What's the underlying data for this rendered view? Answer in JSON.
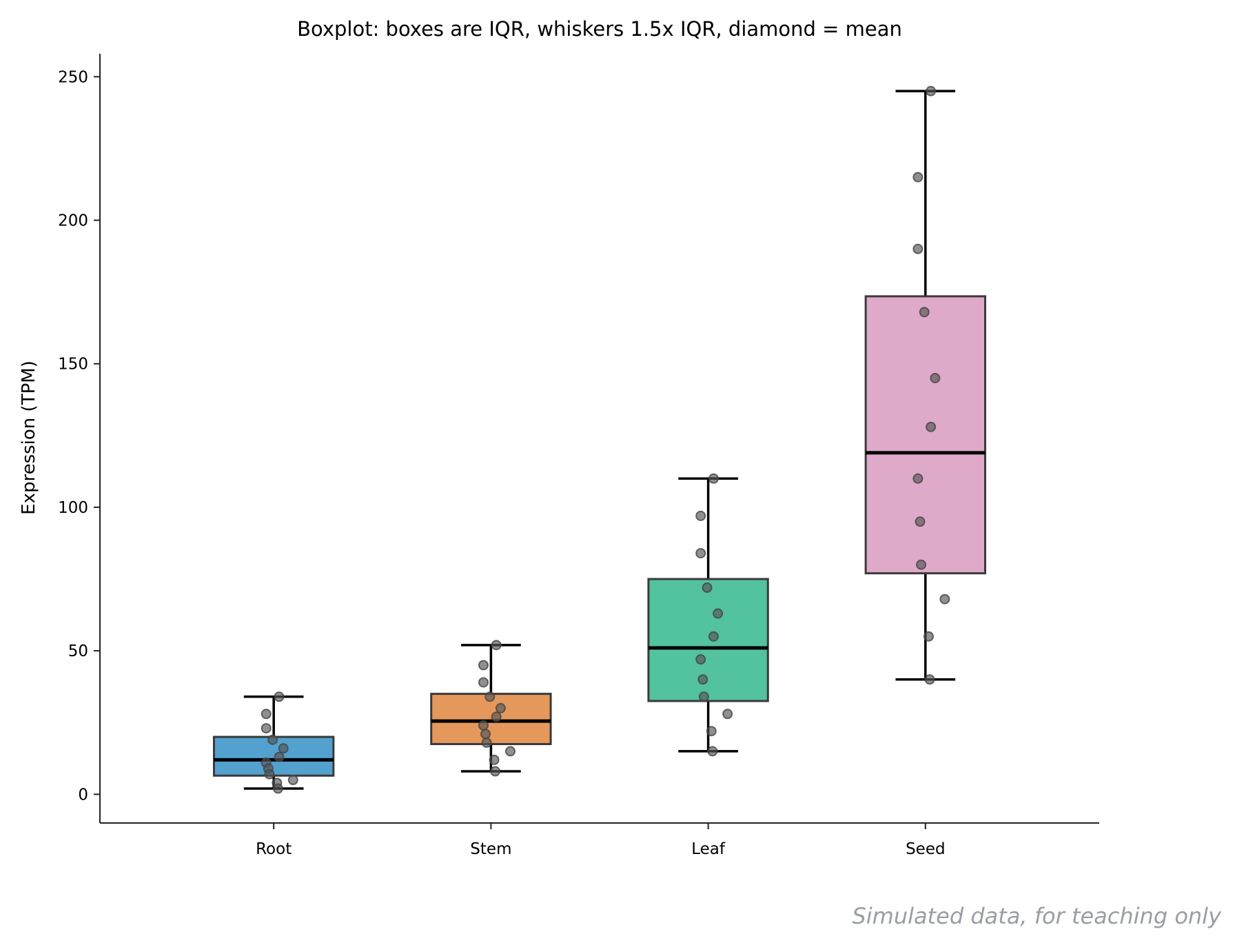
{
  "chart_data": {
    "type": "box",
    "title": "Boxplot: boxes are IQR, whiskers 1.5x IQR, diamond = mean",
    "xlabel": "",
    "ylabel": "Expression (TPM)",
    "ylim": [
      -10,
      258
    ],
    "yticks": [
      0,
      50,
      100,
      150,
      200,
      250
    ],
    "grid": false,
    "categories": [
      "Root",
      "Stem",
      "Leaf",
      "Seed"
    ],
    "colors": [
      "#3b94c8",
      "#e08a45",
      "#3bba92",
      "#db9dc1"
    ],
    "boxes": [
      {
        "name": "Root",
        "q1": 6.5,
        "median": 12,
        "q3": 20,
        "whisker_low": 2,
        "whisker_high": 34,
        "points": [
          34,
          28,
          23,
          19,
          16,
          13,
          11,
          9,
          7,
          5,
          4,
          2
        ]
      },
      {
        "name": "Stem",
        "q1": 17.5,
        "median": 25.5,
        "q3": 35,
        "whisker_low": 8,
        "whisker_high": 52,
        "points": [
          52,
          45,
          39,
          34,
          30,
          27,
          24,
          21,
          18,
          15,
          12,
          8
        ]
      },
      {
        "name": "Leaf",
        "q1": 32.5,
        "median": 51,
        "q3": 75,
        "whisker_low": 15,
        "whisker_high": 110,
        "points": [
          110,
          97,
          84,
          72,
          63,
          55,
          47,
          40,
          34,
          28,
          22,
          15
        ]
      },
      {
        "name": "Seed",
        "q1": 77,
        "median": 119,
        "q3": 173.5,
        "whisker_low": 40,
        "whisker_high": 245,
        "points": [
          245,
          215,
          190,
          168,
          145,
          128,
          110,
          95,
          80,
          68,
          55,
          40
        ]
      }
    ],
    "footnote": "Simulated data, for teaching only"
  }
}
